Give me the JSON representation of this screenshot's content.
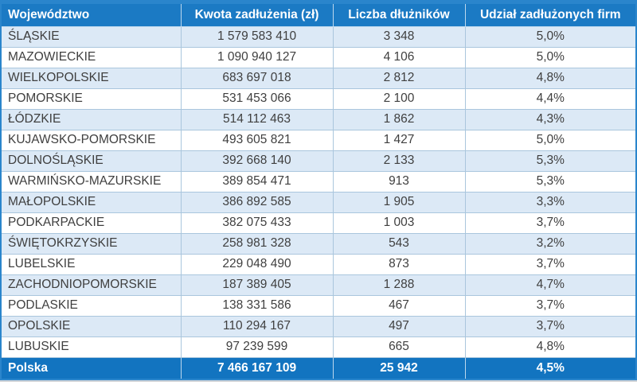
{
  "chart_data": {
    "type": "table",
    "columns": [
      "Województwo",
      "Kwota zadłużenia (zł)",
      "Liczba dłużników",
      "Udział zadłużonych firm"
    ],
    "rows": [
      [
        "ŚLĄSKIE",
        "1 579 583 410",
        "3 348",
        "5,0%"
      ],
      [
        "MAZOWIECKIE",
        "1 090 940 127",
        "4 106",
        "5,0%"
      ],
      [
        "WIELKOPOLSKIE",
        "683 697 018",
        "2 812",
        "4,8%"
      ],
      [
        "POMORSKIE",
        "531 453 066",
        "2 100",
        "4,4%"
      ],
      [
        "ŁÓDZKIE",
        "514 112 463",
        "1 862",
        "4,3%"
      ],
      [
        "KUJAWSKO-POMORSKIE",
        "493 605 821",
        "1 427",
        "5,0%"
      ],
      [
        "DOLNOŚLĄSKIE",
        "392 668 140",
        "2 133",
        "5,3%"
      ],
      [
        "WARMIŃSKO-MAZURSKIE",
        "389 854 471",
        "913",
        "5,3%"
      ],
      [
        "MAŁOPOLSKIE",
        "386 892 585",
        "1 905",
        "3,3%"
      ],
      [
        "PODKARPACKIE",
        "382 075 433",
        "1 003",
        "3,7%"
      ],
      [
        "ŚWIĘTOKRZYSKIE",
        "258 981 328",
        "543",
        "3,2%"
      ],
      [
        "LUBELSKIE",
        "229 048 490",
        "873",
        "3,7%"
      ],
      [
        "ZACHODNIOPOMORSKIE",
        "187 389 405",
        "1 288",
        "4,7%"
      ],
      [
        "PODLASKIE",
        "138 331 586",
        "467",
        "3,7%"
      ],
      [
        "OPOLSKIE",
        "110 294 167",
        "497",
        "3,7%"
      ],
      [
        "LUBUSKIE",
        "97 239 599",
        "665",
        "4,8%"
      ]
    ],
    "total_row": {
      "label": "Polska",
      "debt_amount": "7 466 167 109",
      "debtor_count": "25 942",
      "share": "4,5%"
    }
  },
  "colors": {
    "header_background": "#1b7ac4",
    "total_background": "#1274c0",
    "row_stripe": "#dce9f6",
    "row_white": "#ffffff",
    "grid_line": "#aac6dd",
    "outer_border": "#2a85cc",
    "header_text": "#ffffff",
    "body_text": "#3f3f3f"
  }
}
